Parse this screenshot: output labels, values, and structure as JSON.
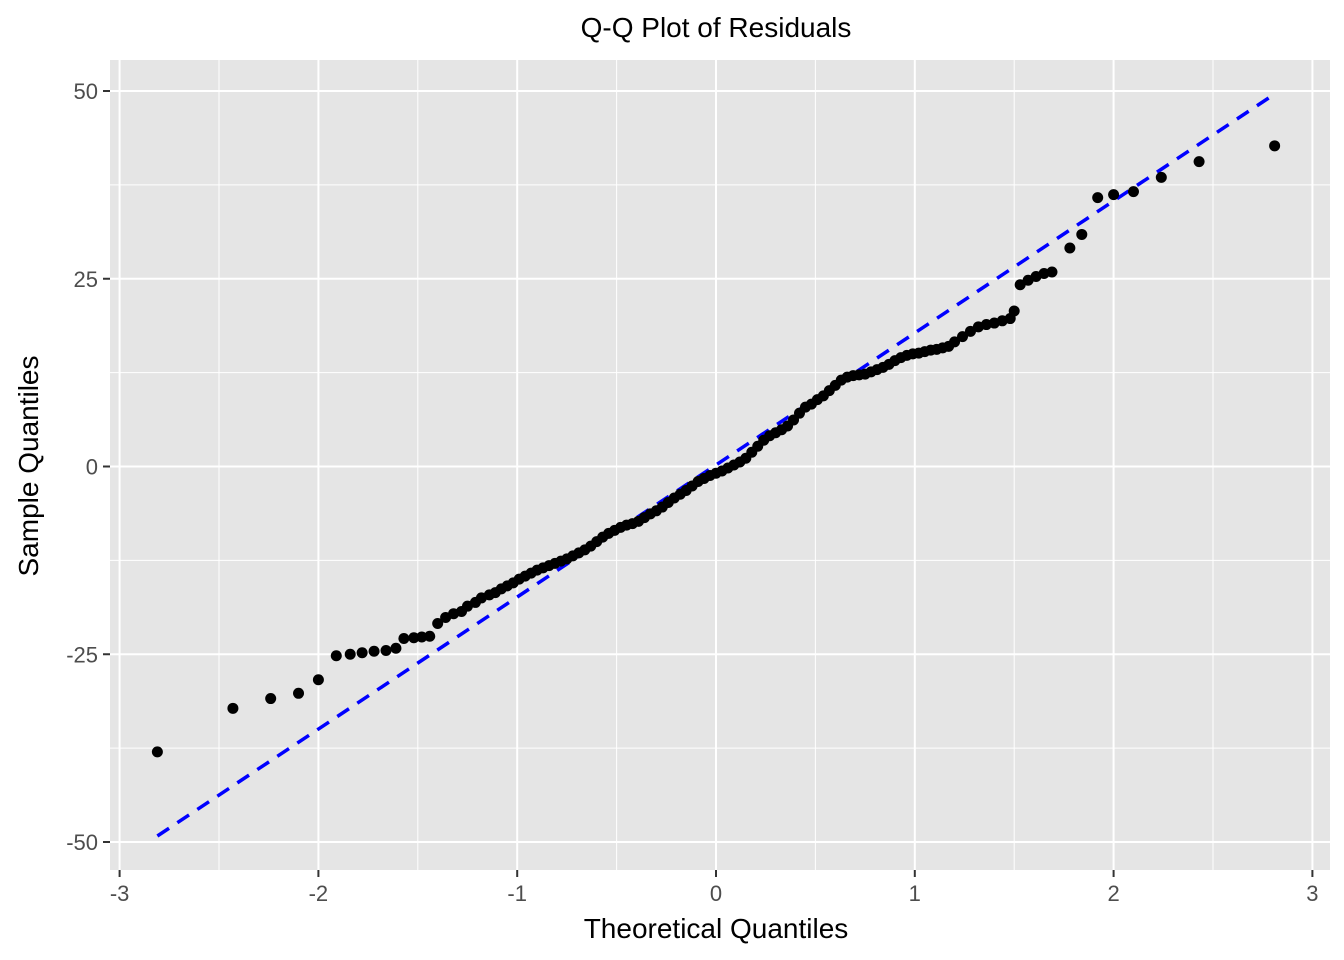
{
  "chart_data": {
    "type": "scatter",
    "title": "Q-Q Plot of Residuals",
    "xlabel": "Theoretical Quantiles",
    "ylabel": "Sample Quantiles",
    "xlim": [
      -3.05,
      3.05
    ],
    "ylim": [
      -52,
      56
    ],
    "x_ticks": [
      -3,
      -2,
      -1,
      0,
      1,
      2,
      3
    ],
    "x_tick_labels": [
      "-3",
      "-2",
      "-1",
      "0",
      "1",
      "2",
      "3"
    ],
    "y_ticks": [
      -50,
      -25,
      0,
      25,
      50
    ],
    "y_tick_labels": [
      "-50",
      "-25",
      "0",
      "25",
      "50"
    ],
    "grid": true,
    "background": "#e5e5e5",
    "grid_color": "#ffffff",
    "point_color": "#000000",
    "reference_line": {
      "style": "dashed",
      "color": "#0000ff",
      "x": [
        -2.81,
        2.81
      ],
      "y": [
        -49.2,
        49.6
      ]
    },
    "points": [
      [
        -2.81,
        -38.0
      ],
      [
        -2.43,
        -32.2
      ],
      [
        -2.24,
        -30.9
      ],
      [
        -2.1,
        -30.2
      ],
      [
        -2.0,
        -28.4
      ],
      [
        -1.91,
        -25.2
      ],
      [
        -1.84,
        -25.0
      ],
      [
        -1.78,
        -24.8
      ],
      [
        -1.72,
        -24.6
      ],
      [
        -1.66,
        -24.5
      ],
      [
        -1.61,
        -24.2
      ],
      [
        -1.57,
        -22.9
      ],
      [
        -1.52,
        -22.8
      ],
      [
        -1.48,
        -22.7
      ],
      [
        -1.44,
        -22.6
      ],
      [
        -1.4,
        -20.9
      ],
      [
        -1.36,
        -20.1
      ],
      [
        -1.32,
        -19.6
      ],
      [
        -1.28,
        -19.3
      ],
      [
        -1.25,
        -18.6
      ],
      [
        -1.21,
        -18.1
      ],
      [
        -1.18,
        -17.5
      ],
      [
        -1.14,
        -17.1
      ],
      [
        -1.11,
        -16.8
      ],
      [
        -1.08,
        -16.3
      ],
      [
        -1.05,
        -15.9
      ],
      [
        -1.02,
        -15.5
      ],
      [
        -0.99,
        -15.0
      ],
      [
        -0.96,
        -14.6
      ],
      [
        -0.93,
        -14.2
      ],
      [
        -0.9,
        -13.8
      ],
      [
        -0.87,
        -13.5
      ],
      [
        -0.84,
        -13.2
      ],
      [
        -0.81,
        -12.9
      ],
      [
        -0.78,
        -12.6
      ],
      [
        -0.75,
        -12.3
      ],
      [
        -0.72,
        -11.9
      ],
      [
        -0.69,
        -11.5
      ],
      [
        -0.66,
        -11.1
      ],
      [
        -0.63,
        -10.6
      ],
      [
        -0.6,
        -10.0
      ],
      [
        -0.57,
        -9.4
      ],
      [
        -0.54,
        -8.9
      ],
      [
        -0.51,
        -8.5
      ],
      [
        -0.48,
        -8.1
      ],
      [
        -0.45,
        -7.8
      ],
      [
        -0.42,
        -7.6
      ],
      [
        -0.39,
        -7.3
      ],
      [
        -0.36,
        -6.8
      ],
      [
        -0.33,
        -6.3
      ],
      [
        -0.3,
        -5.9
      ],
      [
        -0.27,
        -5.4
      ],
      [
        -0.24,
        -4.8
      ],
      [
        -0.21,
        -4.2
      ],
      [
        -0.18,
        -3.7
      ],
      [
        -0.15,
        -3.2
      ],
      [
        -0.12,
        -2.6
      ],
      [
        -0.09,
        -2.0
      ],
      [
        -0.06,
        -1.6
      ],
      [
        -0.03,
        -1.2
      ],
      [
        0.0,
        -0.9
      ],
      [
        0.03,
        -0.6
      ],
      [
        0.06,
        -0.2
      ],
      [
        0.09,
        0.2
      ],
      [
        0.12,
        0.6
      ],
      [
        0.15,
        1.1
      ],
      [
        0.18,
        1.9
      ],
      [
        0.21,
        2.7
      ],
      [
        0.24,
        3.5
      ],
      [
        0.27,
        4.1
      ],
      [
        0.3,
        4.5
      ],
      [
        0.33,
        4.9
      ],
      [
        0.36,
        5.4
      ],
      [
        0.39,
        6.2
      ],
      [
        0.42,
        7.1
      ],
      [
        0.45,
        7.9
      ],
      [
        0.48,
        8.3
      ],
      [
        0.51,
        8.9
      ],
      [
        0.54,
        9.4
      ],
      [
        0.57,
        10.1
      ],
      [
        0.6,
        10.8
      ],
      [
        0.63,
        11.5
      ],
      [
        0.66,
        11.9
      ],
      [
        0.69,
        12.1
      ],
      [
        0.72,
        12.2
      ],
      [
        0.75,
        12.3
      ],
      [
        0.78,
        12.6
      ],
      [
        0.81,
        12.9
      ],
      [
        0.84,
        13.2
      ],
      [
        0.87,
        13.6
      ],
      [
        0.9,
        14.1
      ],
      [
        0.93,
        14.5
      ],
      [
        0.96,
        14.8
      ],
      [
        0.99,
        15.0
      ],
      [
        1.02,
        15.1
      ],
      [
        1.05,
        15.3
      ],
      [
        1.08,
        15.5
      ],
      [
        1.11,
        15.6
      ],
      [
        1.14,
        15.8
      ],
      [
        1.17,
        16.0
      ],
      [
        1.2,
        16.6
      ],
      [
        1.24,
        17.3
      ],
      [
        1.28,
        18.0
      ],
      [
        1.32,
        18.6
      ],
      [
        1.36,
        18.9
      ],
      [
        1.4,
        19.1
      ],
      [
        1.44,
        19.4
      ],
      [
        1.48,
        19.7
      ],
      [
        1.5,
        20.7
      ],
      [
        1.53,
        24.2
      ],
      [
        1.57,
        24.8
      ],
      [
        1.61,
        25.3
      ],
      [
        1.65,
        25.7
      ],
      [
        1.69,
        25.9
      ],
      [
        1.78,
        29.1
      ],
      [
        1.84,
        30.9
      ],
      [
        1.92,
        35.8
      ],
      [
        2.0,
        36.2
      ],
      [
        2.1,
        36.6
      ],
      [
        2.24,
        38.5
      ],
      [
        2.43,
        40.6
      ],
      [
        2.81,
        42.7
      ]
    ]
  }
}
